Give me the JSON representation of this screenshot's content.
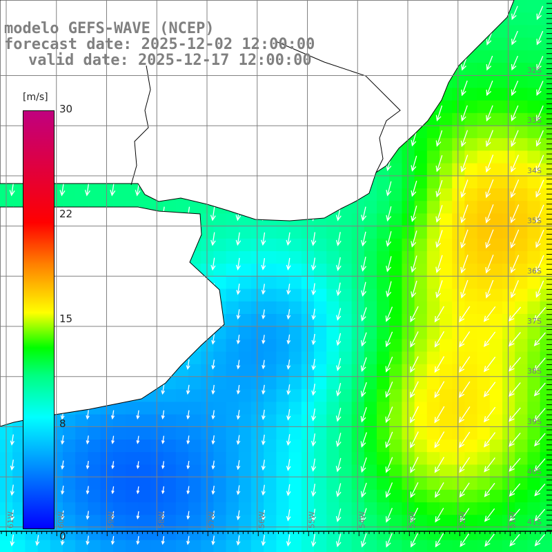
{
  "title": {
    "line1": "modelo GEFS-WAVE (NCEP)",
    "line2": "forecast date: 2025-12-02 12:00:00",
    "line3": "valid date: 2025-12-17 12:00:00"
  },
  "colorbar": {
    "unit": "[m/s]",
    "labels": [
      {
        "text": "30",
        "value": 30
      },
      {
        "text": "22",
        "value": 22
      },
      {
        "text": "15",
        "value": 15
      },
      {
        "text": "8",
        "value": 8
      },
      {
        "text": "0",
        "value": 0
      }
    ],
    "range": [
      0,
      30
    ]
  },
  "lat_labels": [
    "32S",
    "33S",
    "34S",
    "35S",
    "36S",
    "37S",
    "38S",
    "39S",
    "40S",
    "41S"
  ],
  "lon_labels": [
    "61W",
    "60W",
    "59W",
    "58W",
    "57W",
    "56W",
    "55W",
    "54W",
    "53W",
    "52W",
    "51W"
  ],
  "colors": {
    "land": "#ffffff",
    "grid": "#808080",
    "arrows": "#ffffff",
    "coast": "#000000",
    "title": "#808080"
  }
}
